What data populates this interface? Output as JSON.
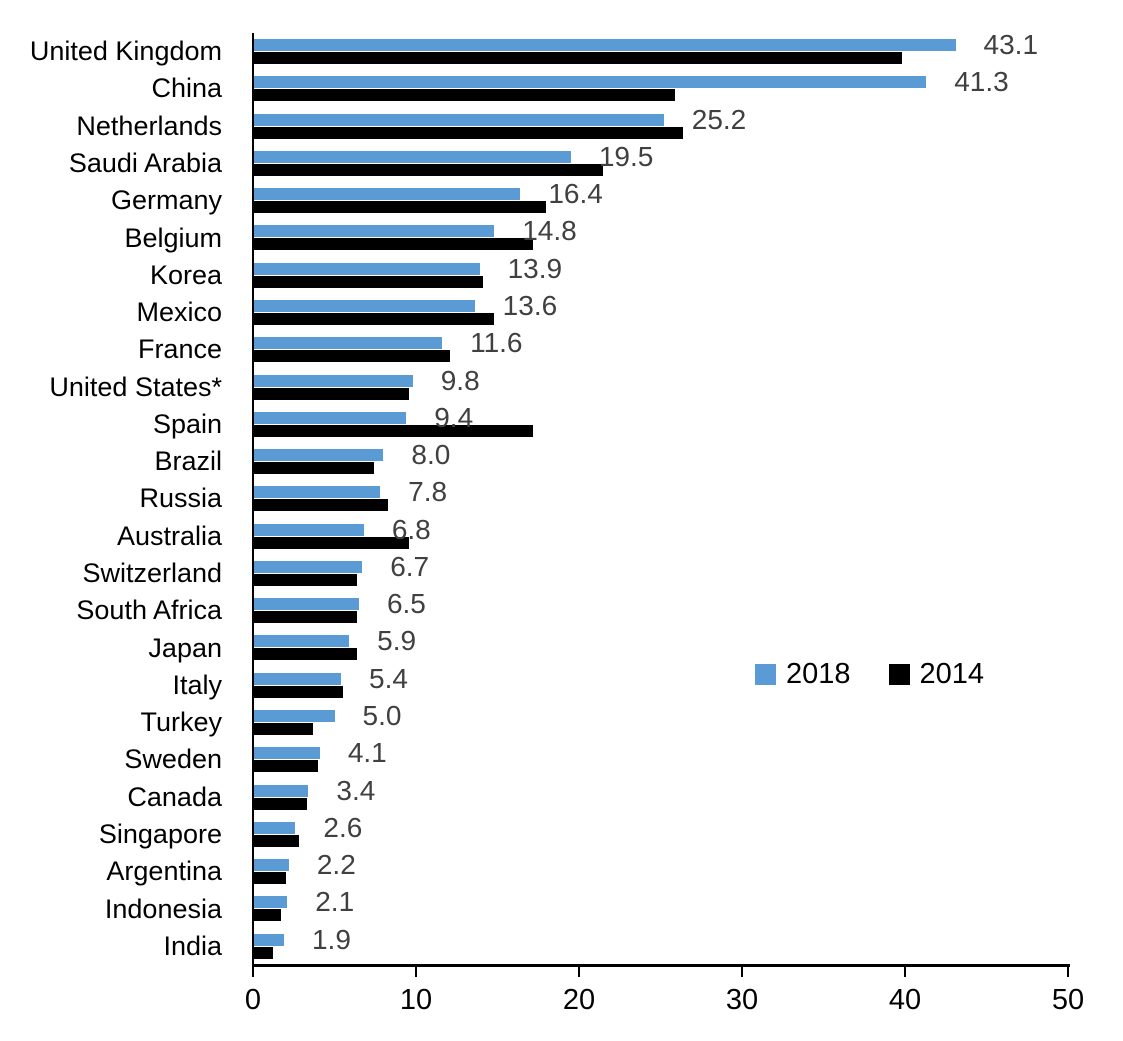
{
  "chart_data": {
    "type": "bar",
    "orientation": "horizontal",
    "title": "",
    "xlabel": "",
    "ylabel": "",
    "xlim": [
      0,
      50
    ],
    "x_ticks": [
      0,
      10,
      20,
      30,
      40,
      50
    ],
    "grid": false,
    "legend_position": "center-right",
    "value_labels_series": "2018",
    "value_label_color": "#404040",
    "categories": [
      "United Kingdom",
      "China",
      "Netherlands",
      "Saudi Arabia",
      "Germany",
      "Belgium",
      "Korea",
      "Mexico",
      "France",
      "United States*",
      "Spain",
      "Brazil",
      "Russia",
      "Australia",
      "Switzerland",
      "South Africa",
      "Japan",
      "Italy",
      "Turkey",
      "Sweden",
      "Canada",
      "Singapore",
      "Argentina",
      "Indonesia",
      "India"
    ],
    "series": [
      {
        "name": "2018",
        "color": "#5B9BD5",
        "labeled": true,
        "values": [
          43.1,
          41.3,
          25.2,
          19.5,
          16.4,
          14.8,
          13.9,
          13.6,
          11.6,
          9.8,
          9.4,
          8.0,
          7.8,
          6.8,
          6.7,
          6.5,
          5.9,
          5.4,
          5.0,
          4.1,
          3.4,
          2.6,
          2.2,
          2.1,
          1.9
        ]
      },
      {
        "name": "2014",
        "color": "#000000",
        "labeled": false,
        "values": [
          39.8,
          25.9,
          26.4,
          21.5,
          18.0,
          17.2,
          14.1,
          14.8,
          12.1,
          9.6,
          17.2,
          7.4,
          8.3,
          9.6,
          6.4,
          6.4,
          6.4,
          5.5,
          3.7,
          4.0,
          3.3,
          2.8,
          2.0,
          1.7,
          1.2
        ]
      }
    ]
  },
  "legend": {
    "item_2018": "2018",
    "item_2014": "2014"
  }
}
